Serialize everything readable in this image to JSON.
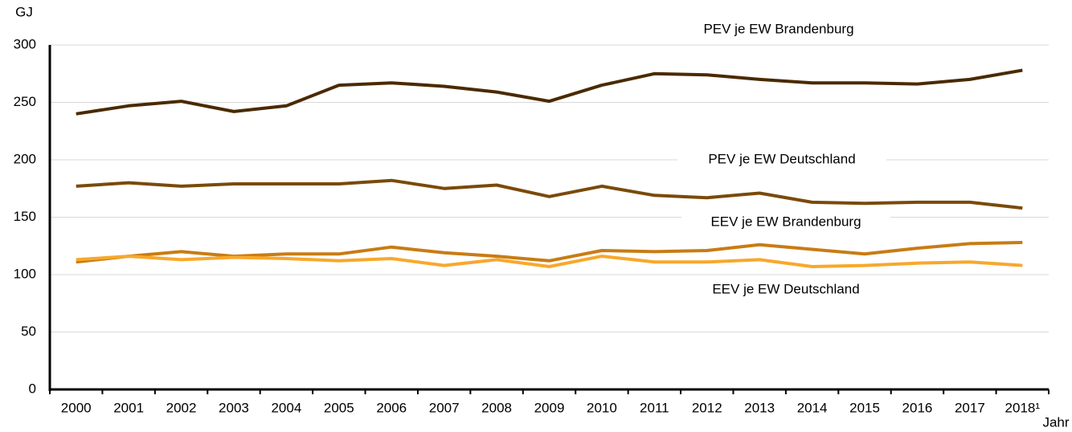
{
  "chart_data": {
    "type": "line",
    "y_label": "GJ",
    "x_label": "Jahr",
    "categories": [
      "2000",
      "2001",
      "2002",
      "2003",
      "2004",
      "2005",
      "2006",
      "2007",
      "2008",
      "2009",
      "2010",
      "2011",
      "2012",
      "2013",
      "2014",
      "2015",
      "2016",
      "2017",
      "2018¹"
    ],
    "series": [
      {
        "name": "PEV je EW Brandenburg",
        "color": "#4a2a00",
        "values": [
          240,
          247,
          251,
          242,
          247,
          265,
          267,
          264,
          259,
          251,
          265,
          275,
          274,
          270,
          267,
          267,
          266,
          270,
          278
        ]
      },
      {
        "name": "PEV je EW Deutschland",
        "color": "#7a4a0a",
        "values": [
          177,
          180,
          177,
          179,
          179,
          179,
          182,
          175,
          178,
          168,
          177,
          169,
          167,
          171,
          163,
          162,
          163,
          163,
          158
        ]
      },
      {
        "name": "EEV je EW Brandenburg",
        "color": "#c87c14",
        "values": [
          111,
          116,
          120,
          116,
          118,
          118,
          124,
          119,
          116,
          112,
          121,
          120,
          121,
          126,
          122,
          118,
          123,
          127,
          128
        ]
      },
      {
        "name": "EEV je EW Deutschland",
        "color": "#f7a82c",
        "values": [
          113,
          116,
          113,
          115,
          114,
          112,
          114,
          108,
          113,
          107,
          116,
          111,
          111,
          113,
          107,
          108,
          110,
          111,
          108
        ]
      }
    ],
    "ylim": [
      0,
      300
    ],
    "yticks": [
      0,
      50,
      100,
      150,
      200,
      250,
      300
    ],
    "grid": true
  }
}
